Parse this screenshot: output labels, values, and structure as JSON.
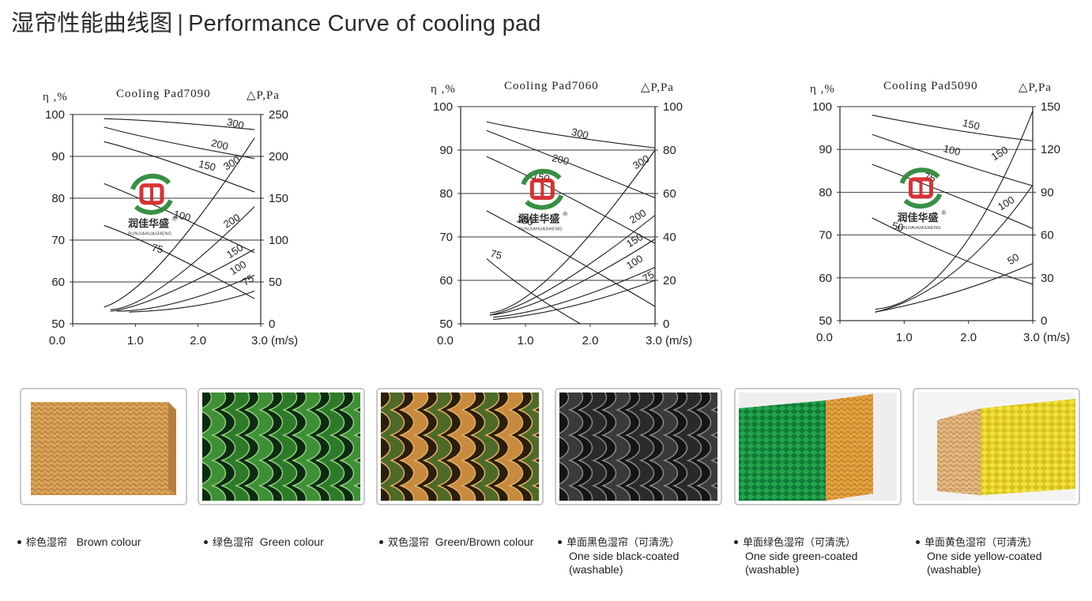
{
  "title": {
    "zh": "湿帘性能曲线图",
    "en": "Performance Curve of cooling pad"
  },
  "colors": {
    "brand_red": "#d42a2a",
    "brand_green": "#2e8b3a",
    "curve": "#1a1a1a"
  },
  "brand": {
    "name_zh": "润佳华盛",
    "name_en": "RUNJIAHUASHENG",
    "registered": "®"
  },
  "chart_data": [
    {
      "type": "line",
      "title": "Cooling Pad7090",
      "left_axis_label": "η ,%",
      "right_axis_label": "△P,Pa",
      "x_unit": "(m/s)",
      "x_ticks": [
        "0.0",
        "1.0",
        "2.0",
        "3.0"
      ],
      "left_ticks": [
        "50",
        "60",
        "70",
        "80",
        "90",
        "100"
      ],
      "right_ticks": [
        "0",
        "50",
        "100",
        "150",
        "200",
        "250"
      ],
      "xlim": [
        0,
        3
      ],
      "ylim_left": [
        50,
        100
      ],
      "ylim_right": [
        0,
        250
      ],
      "grid": "horizontal",
      "efficiency_series": [
        {
          "name": "300",
          "x": [
            0.5,
            1.5,
            2.9
          ],
          "y": [
            99,
            98.2,
            96.4
          ],
          "label_at": [
            2.45,
            97.5
          ]
        },
        {
          "name": "200",
          "x": [
            0.5,
            1.5,
            2.9
          ],
          "y": [
            97,
            93.5,
            89.5
          ],
          "label_at": [
            2.2,
            92.5
          ]
        },
        {
          "name": "150",
          "x": [
            0.5,
            1.5,
            2.9
          ],
          "y": [
            93.5,
            89,
            81.5
          ],
          "label_at": [
            2.0,
            87.5
          ]
        },
        {
          "name": "100",
          "x": [
            0.5,
            1.5,
            2.9
          ],
          "y": [
            83.5,
            77,
            67
          ],
          "label_at": [
            1.6,
            75.5
          ]
        },
        {
          "name": "75",
          "x": [
            0.5,
            1.5,
            2.9
          ],
          "y": [
            73.5,
            67,
            56
          ],
          "label_at": [
            1.25,
            67.5
          ]
        }
      ],
      "pressure_series": [
        {
          "name": "300",
          "x": [
            0.5,
            1.5,
            2.9
          ],
          "y": [
            20,
            80,
            222
          ],
          "label_at": [
            2.45,
            183
          ]
        },
        {
          "name": "200",
          "x": [
            0.6,
            1.5,
            2.9
          ],
          "y": [
            17,
            48,
            140
          ],
          "label_at": [
            2.45,
            114
          ]
        },
        {
          "name": "150",
          "x": [
            0.6,
            1.5,
            2.9
          ],
          "y": [
            15,
            36,
            89
          ],
          "label_at": [
            2.5,
            78
          ]
        },
        {
          "name": "100",
          "x": [
            0.7,
            1.7,
            2.9
          ],
          "y": [
            15,
            26,
            58
          ],
          "label_at": [
            2.55,
            58
          ]
        },
        {
          "name": "75",
          "x": [
            0.9,
            2.0,
            2.9
          ],
          "y": [
            14,
            22,
            39
          ],
          "label_at": [
            2.75,
            45
          ]
        }
      ]
    },
    {
      "type": "line",
      "title": "Cooling Pad7060",
      "left_axis_label": "η ,%",
      "right_axis_label": "△P,Pa",
      "x_unit": "(m/s)",
      "x_ticks": [
        "0.0",
        "1.0",
        "2.0",
        "3.0"
      ],
      "left_ticks": [
        "50",
        "60",
        "70",
        "80",
        "90",
        "100"
      ],
      "right_ticks": [
        "0",
        "20",
        "40",
        "60",
        "80",
        "100"
      ],
      "xlim": [
        0,
        3
      ],
      "ylim_left": [
        50,
        100
      ],
      "ylim_right": [
        0,
        100
      ],
      "grid": "horizontal",
      "efficiency_series": [
        {
          "name": "300",
          "x": [
            0.4,
            1.5,
            3.0
          ],
          "y": [
            96.5,
            93.5,
            90.5
          ],
          "label_at": [
            1.7,
            93.5
          ]
        },
        {
          "name": "200",
          "x": [
            0.4,
            1.5,
            3.0
          ],
          "y": [
            94.5,
            88,
            79
          ],
          "label_at": [
            1.4,
            87.5
          ]
        },
        {
          "name": "150",
          "x": [
            0.4,
            1.5,
            3.0
          ],
          "y": [
            88.5,
            80.5,
            68.5
          ],
          "label_at": [
            1.1,
            83.5
          ]
        },
        {
          "name": "100",
          "x": [
            0.4,
            1.5,
            3.0
          ],
          "y": [
            76,
            67,
            54
          ],
          "label_at": [
            0.85,
            73.5
          ]
        },
        {
          "name": "75",
          "x": [
            0.4,
            1.1,
            1.85
          ],
          "y": [
            65,
            57,
            50
          ],
          "label_at": [
            0.45,
            65.5
          ]
        }
      ],
      "pressure_series": [
        {
          "name": "300",
          "x": [
            0.45,
            1.5,
            3.0
          ],
          "y": [
            5,
            25,
            80
          ],
          "label_at": [
            2.7,
            71
          ]
        },
        {
          "name": "200",
          "x": [
            0.45,
            1.5,
            3.0
          ],
          "y": [
            4,
            18,
            50
          ],
          "label_at": [
            2.65,
            46
          ]
        },
        {
          "name": "150",
          "x": [
            0.45,
            1.5,
            3.0
          ],
          "y": [
            4,
            14,
            39
          ],
          "label_at": [
            2.6,
            35
          ]
        },
        {
          "name": "100",
          "x": [
            0.5,
            1.6,
            3.0
          ],
          "y": [
            3,
            10,
            26
          ],
          "label_at": [
            2.6,
            25
          ]
        },
        {
          "name": "75",
          "x": [
            0.5,
            1.7,
            3.0
          ],
          "y": [
            2,
            8,
            20
          ],
          "label_at": [
            2.85,
            19
          ]
        }
      ]
    },
    {
      "type": "line",
      "title": "Cooling Pad5090",
      "left_axis_label": "η ,%",
      "right_axis_label": "△P,Pa",
      "x_unit": "(m/s)",
      "x_ticks": [
        "0.0",
        "1.0",
        "2.0",
        "3.0"
      ],
      "left_ticks": [
        "50",
        "60",
        "70",
        "80",
        "90",
        "100"
      ],
      "right_ticks": [
        "0",
        "30",
        "60",
        "90",
        "120",
        "150"
      ],
      "xlim": [
        0,
        3
      ],
      "ylim_left": [
        50,
        100
      ],
      "ylim_right": [
        0,
        150
      ],
      "grid": "horizontal",
      "efficiency_series": [
        {
          "name": "150",
          "x": [
            0.5,
            1.8,
            3.0
          ],
          "y": [
            98,
            94.5,
            92
          ],
          "label_at": [
            1.9,
            95.5
          ]
        },
        {
          "name": "100",
          "x": [
            0.5,
            1.8,
            3.0
          ],
          "y": [
            93.5,
            87,
            81.5
          ],
          "label_at": [
            1.6,
            89.5
          ]
        },
        {
          "name": "75",
          "x": [
            0.5,
            1.8,
            3.0
          ],
          "y": [
            86.5,
            79,
            71.5
          ],
          "label_at": [
            1.3,
            83
          ]
        },
        {
          "name": "50",
          "x": [
            0.5,
            1.8,
            3.0
          ],
          "y": [
            74,
            65,
            58.5
          ],
          "label_at": [
            0.8,
            71.5
          ]
        }
      ],
      "pressure_series": [
        {
          "name": "150",
          "x": [
            0.55,
            1.8,
            3.0
          ],
          "y": [
            8,
            45,
            147
          ],
          "label_at": [
            2.4,
            112
          ]
        },
        {
          "name": "100",
          "x": [
            0.55,
            1.8,
            3.0
          ],
          "y": [
            6,
            35,
            95
          ],
          "label_at": [
            2.5,
            77
          ]
        },
        {
          "name": "50",
          "x": [
            0.55,
            1.8,
            3.0
          ],
          "y": [
            6,
            20,
            40
          ],
          "label_at": [
            2.65,
            39
          ]
        }
      ]
    }
  ],
  "products": [
    {
      "zh": "棕色湿帘",
      "en": "Brown colour",
      "en_lines": []
    },
    {
      "zh": "绿色湿帘",
      "en": "Green colour",
      "en_lines": []
    },
    {
      "zh": "双色湿帘",
      "en": "Green/Brown colour",
      "en_lines": []
    },
    {
      "zh": "单面黑色湿帘（可清洗）",
      "en": "",
      "en_lines": [
        "One side black-coated",
        "(washable)"
      ]
    },
    {
      "zh": "单面绿色湿帘（可清洗）",
      "en": "",
      "en_lines": [
        "One side green-coated",
        "(washable)"
      ]
    },
    {
      "zh": "单面黄色湿帘（可清洗）",
      "en": "",
      "en_lines": [
        "One side yellow-coated",
        "(washable)"
      ]
    }
  ]
}
